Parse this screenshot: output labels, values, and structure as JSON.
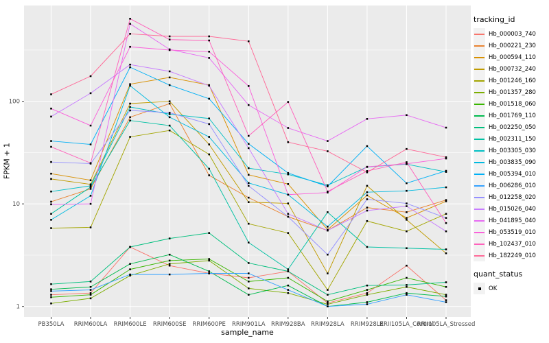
{
  "chart_data": {
    "type": "line",
    "title": "",
    "xlabel": "sample_name",
    "ylabel": "FPKM + 1",
    "yscale": "log10",
    "yticks": [
      1,
      10,
      100
    ],
    "y_minor_ticks": [
      3.162,
      31.62,
      316.2
    ],
    "ylim_approx": [
      0.79,
      860
    ],
    "grid": "on",
    "legend_position": "right",
    "legend_title": "tracking_id",
    "point_marker": "black-square",
    "categories": [
      "PB350LA",
      "RRIM600LA",
      "RRIM600LE",
      "RRIM600SE",
      "RRIM600PE",
      "RRIM901LA",
      "RRIM928BA",
      "RRIM928LA",
      "RRIM928LE",
      "RRII105LA_Control",
      "RRII105LA_Stressed"
    ],
    "series": [
      {
        "name": "Hb_000003_740",
        "color": "#F8766D",
        "values": [
          1.3,
          1.35,
          3.8,
          2.5,
          2.1,
          1.9,
          2.2,
          1.08,
          1.35,
          2.5,
          1.15
        ]
      },
      {
        "name": "Hb_000221_230",
        "color": "#EA8331",
        "values": [
          10.5,
          14,
          70,
          95,
          19,
          11.5,
          7.5,
          5.5,
          9.2,
          8.3,
          10.9
        ]
      },
      {
        "name": "Hb_000594_110",
        "color": "#D89000",
        "values": [
          19.7,
          17,
          147,
          171,
          144,
          19.2,
          15.6,
          5.6,
          12.1,
          7.3,
          10.6
        ]
      },
      {
        "name": "Hb_000732_240",
        "color": "#C09B00",
        "values": [
          17.5,
          15.5,
          95,
          100,
          38,
          10.4,
          10.1,
          2.1,
          15.0,
          7.0,
          3.3
        ]
      },
      {
        "name": "Hb_001246_160",
        "color": "#A3A500",
        "values": [
          5.8,
          5.9,
          45,
          52,
          30.4,
          6.4,
          5.2,
          1.45,
          6.8,
          5.4,
          8.0
        ]
      },
      {
        "name": "Hb_001357_280",
        "color": "#7CAE00",
        "values": [
          1.07,
          1.2,
          2.0,
          2.6,
          2.8,
          1.5,
          1.35,
          1.05,
          1.3,
          1.55,
          1.3
        ]
      },
      {
        "name": "Hb_001518_060",
        "color": "#39B600",
        "values": [
          1.23,
          1.3,
          2.3,
          2.8,
          2.9,
          1.75,
          1.9,
          1.12,
          1.45,
          1.9,
          1.55
        ]
      },
      {
        "name": "Hb_001769_110",
        "color": "#00BB4E",
        "values": [
          1.47,
          1.55,
          2.6,
          3.2,
          2.2,
          1.3,
          1.6,
          1.0,
          1.1,
          1.35,
          1.25
        ]
      },
      {
        "name": "Hb_002250_050",
        "color": "#00BF7D",
        "values": [
          1.65,
          1.75,
          3.8,
          4.6,
          5.2,
          2.65,
          2.2,
          1.3,
          1.6,
          1.62,
          1.72
        ]
      },
      {
        "name": "Hb_002311_150",
        "color": "#00C1A3",
        "values": [
          8.0,
          14.6,
          65,
          58,
          22,
          4.2,
          2.3,
          8.3,
          3.8,
          3.7,
          3.6
        ]
      },
      {
        "name": "Hb_003305_030",
        "color": "#00BFC4",
        "values": [
          13.2,
          15,
          88,
          75,
          68,
          22.3,
          19.4,
          15.2,
          22.9,
          24.4,
          20.5
        ]
      },
      {
        "name": "Hb_003835_090",
        "color": "#00BAE0",
        "values": [
          7.0,
          12,
          142,
          70,
          45,
          16,
          12.3,
          6.0,
          13.0,
          13.4,
          14.5
        ]
      },
      {
        "name": "Hb_005394_010",
        "color": "#00B0F6",
        "values": [
          41,
          38,
          215,
          144,
          106,
          38.5,
          20,
          14.8,
          36.6,
          15.9,
          21.0
        ]
      },
      {
        "name": "Hb_006286_010",
        "color": "#35A2FF",
        "values": [
          1.41,
          1.45,
          2.05,
          2.05,
          2.1,
          2.1,
          1.45,
          1.0,
          1.05,
          1.3,
          1.1
        ]
      },
      {
        "name": "Hb_012258_020",
        "color": "#9590FF",
        "values": [
          25.6,
          24.7,
          81.5,
          77.5,
          60,
          15,
          7.5,
          3.2,
          11.1,
          10.1,
          7.3
        ]
      },
      {
        "name": "Hb_015026_040",
        "color": "#C77CFF",
        "values": [
          71,
          120,
          228,
          196,
          142,
          35,
          8.0,
          5.5,
          8.6,
          9.5,
          5.4
        ]
      },
      {
        "name": "Hb_041895_040",
        "color": "#E76BF3",
        "values": [
          9.9,
          10,
          570,
          321,
          265,
          92,
          55,
          41,
          67.4,
          73.4,
          55.4
        ]
      },
      {
        "name": "Hb_053519_010",
        "color": "#FA62DB",
        "values": [
          85,
          58,
          340,
          316,
          305,
          141,
          12.3,
          12.9,
          23,
          24.6,
          27.7
        ]
      },
      {
        "name": "Hb_102437_010",
        "color": "#FF62BC",
        "values": [
          36,
          25,
          639,
          400,
          392,
          46,
          98.6,
          13.2,
          20.9,
          25.5,
          6.5
        ]
      },
      {
        "name": "Hb_182249_010",
        "color": "#FF6A98",
        "values": [
          117,
          176,
          455,
          430,
          430,
          385,
          40,
          32.6,
          20.3,
          34.3,
          28.5
        ]
      }
    ],
    "quant_legend": {
      "title": "quant_status",
      "items": [
        "OK"
      ]
    }
  },
  "colors": {
    "panel_bg": "#EBEBEB",
    "grid": "#FFFFFF",
    "tick_text": "#4D4D4D",
    "tick_mark": "#333333",
    "point": "#000000",
    "legend_key_bg": "#F2F2F2"
  }
}
